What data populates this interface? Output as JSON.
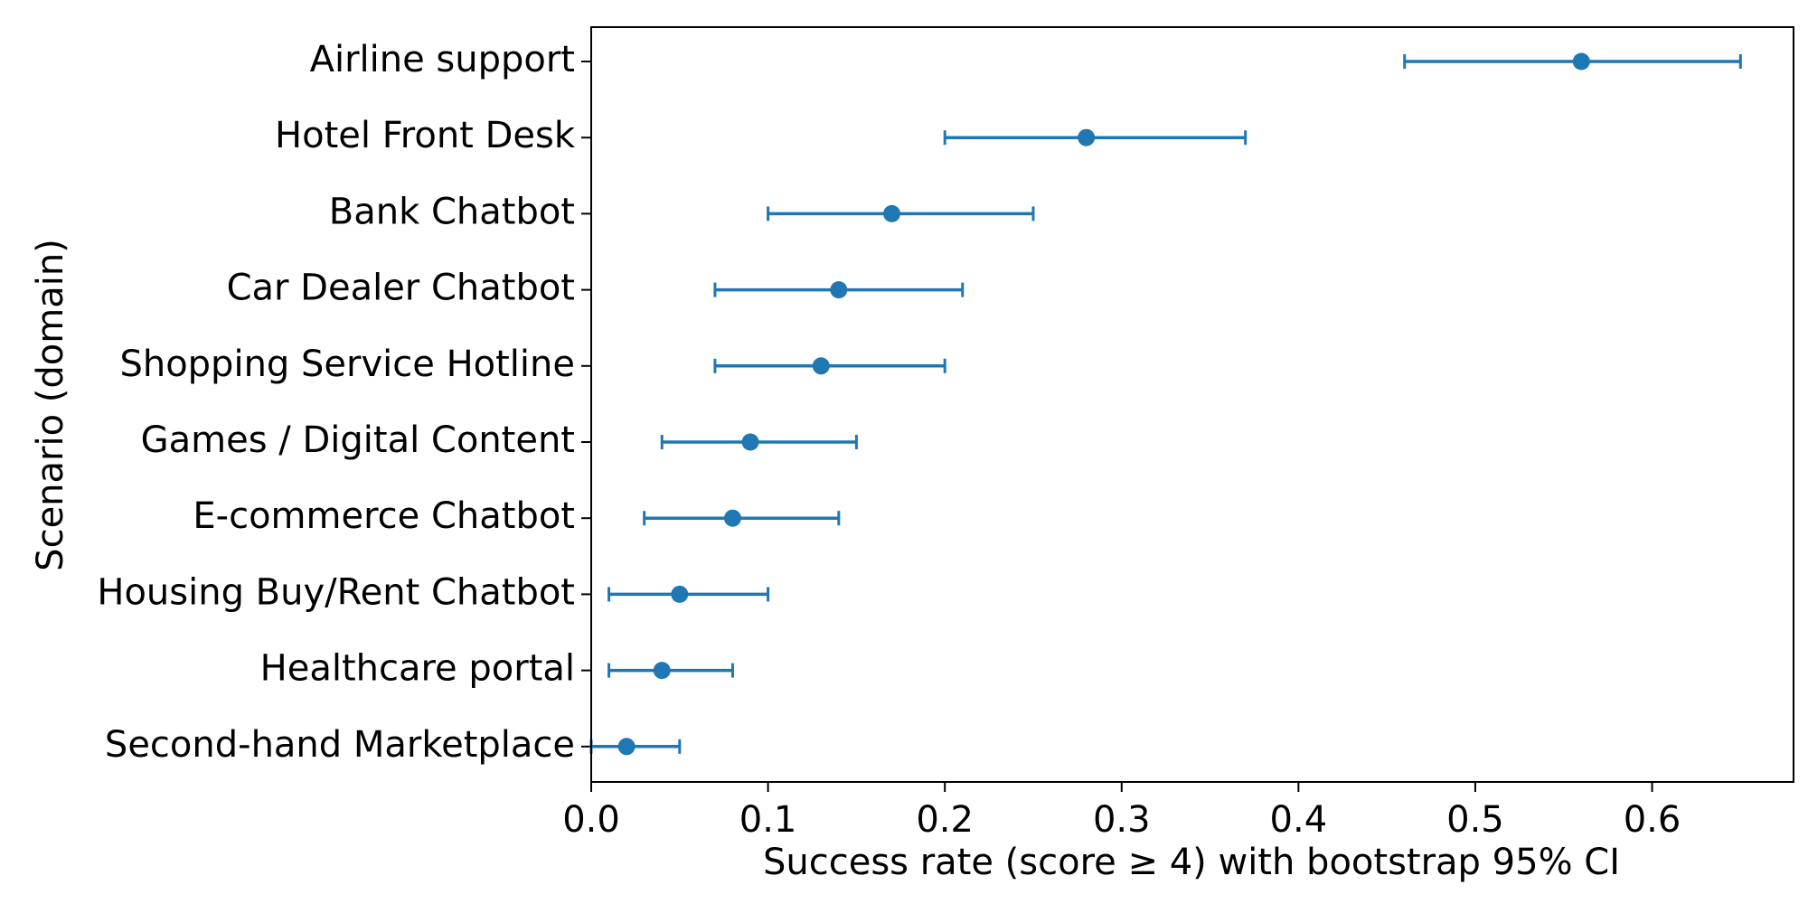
{
  "chart_data": {
    "type": "scatter",
    "title": "",
    "xlabel": "Success rate (score ≥ 4) with bootstrap 95% CI",
    "ylabel": "Scenario (domain)",
    "xlim": [
      0.0,
      0.68
    ],
    "xticks": [
      {
        "value": 0.0,
        "label": "0.0"
      },
      {
        "value": 0.1,
        "label": "0.1"
      },
      {
        "value": 0.2,
        "label": "0.2"
      },
      {
        "value": 0.3,
        "label": "0.3"
      },
      {
        "value": 0.4,
        "label": "0.4"
      },
      {
        "value": 0.5,
        "label": "0.5"
      },
      {
        "value": 0.6,
        "label": "0.6"
      }
    ],
    "grid": false,
    "color": "#1f77b4",
    "categories": [
      "Airline support",
      "Hotel Front Desk",
      "Bank Chatbot",
      "Car Dealer Chatbot",
      "Shopping Service Hotline",
      "Games / Digital Content",
      "E-commerce Chatbot",
      "Housing Buy/Rent Chatbot",
      "Healthcare portal",
      "Second-hand Marketplace"
    ],
    "values": [
      0.56,
      0.28,
      0.17,
      0.14,
      0.13,
      0.09,
      0.08,
      0.05,
      0.04,
      0.02
    ],
    "ci_lower": [
      0.46,
      0.2,
      0.1,
      0.07,
      0.07,
      0.04,
      0.03,
      0.01,
      0.01,
      0.0
    ],
    "ci_upper": [
      0.65,
      0.37,
      0.25,
      0.21,
      0.2,
      0.15,
      0.14,
      0.1,
      0.08,
      0.05
    ]
  }
}
